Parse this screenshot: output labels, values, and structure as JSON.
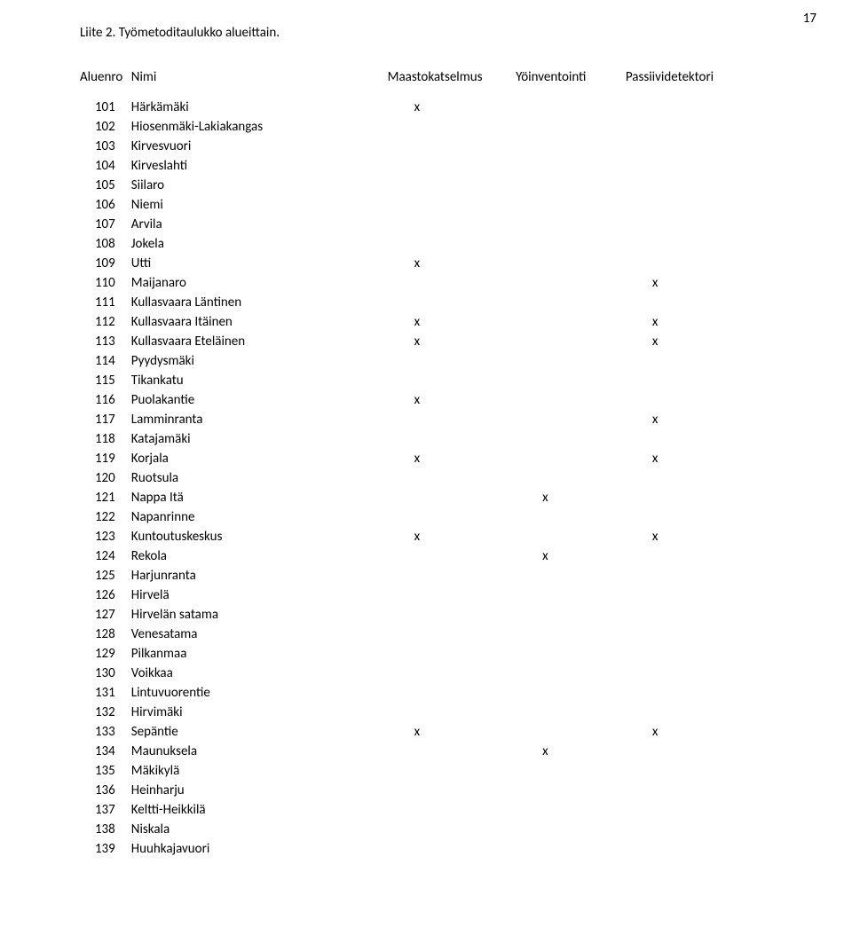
{
  "page_number": "17",
  "title": "Liite 2. Työmetoditaulukko alueittain.",
  "headers": {
    "col1": "Aluenro",
    "col2": "Nimi",
    "col3": "Maastokatselmus",
    "col4": "Yöinventointi",
    "col5": "Passiividetektori"
  },
  "mark": "x",
  "rows": [
    {
      "n": "101",
      "name": "Härkämäki",
      "m1": true,
      "m2": false,
      "m3": false
    },
    {
      "n": "102",
      "name": "Hiosenmäki-Lakiakangas",
      "m1": false,
      "m2": false,
      "m3": false
    },
    {
      "n": "103",
      "name": "Kirvesvuori",
      "m1": false,
      "m2": false,
      "m3": false
    },
    {
      "n": "104",
      "name": "Kirveslahti",
      "m1": false,
      "m2": false,
      "m3": false
    },
    {
      "n": "105",
      "name": "Siilaro",
      "m1": false,
      "m2": false,
      "m3": false
    },
    {
      "n": "106",
      "name": "Niemi",
      "m1": false,
      "m2": false,
      "m3": false
    },
    {
      "n": "107",
      "name": "Arvila",
      "m1": false,
      "m2": false,
      "m3": false
    },
    {
      "n": "108",
      "name": "Jokela",
      "m1": false,
      "m2": false,
      "m3": false
    },
    {
      "n": "109",
      "name": "Utti",
      "m1": true,
      "m2": false,
      "m3": false
    },
    {
      "n": "110",
      "name": "Maijanaro",
      "m1": false,
      "m2": false,
      "m3": true
    },
    {
      "n": "111",
      "name": "Kullasvaara Läntinen",
      "m1": false,
      "m2": false,
      "m3": false
    },
    {
      "n": "112",
      "name": "Kullasvaara Itäinen",
      "m1": true,
      "m2": false,
      "m3": true
    },
    {
      "n": "113",
      "name": "Kullasvaara Eteläinen",
      "m1": true,
      "m2": false,
      "m3": true
    },
    {
      "n": "114",
      "name": "Pyydysmäki",
      "m1": false,
      "m2": false,
      "m3": false
    },
    {
      "n": "115",
      "name": "Tikankatu",
      "m1": false,
      "m2": false,
      "m3": false
    },
    {
      "n": "116",
      "name": "Puolakantie",
      "m1": true,
      "m2": false,
      "m3": false
    },
    {
      "n": "117",
      "name": "Lamminranta",
      "m1": false,
      "m2": false,
      "m3": true
    },
    {
      "n": "118",
      "name": "Katajamäki",
      "m1": false,
      "m2": false,
      "m3": false
    },
    {
      "n": "119",
      "name": "Korjala",
      "m1": true,
      "m2": false,
      "m3": true
    },
    {
      "n": "120",
      "name": "Ruotsula",
      "m1": false,
      "m2": false,
      "m3": false
    },
    {
      "n": "121",
      "name": "Nappa Itä",
      "m1": false,
      "m2": true,
      "m3": false
    },
    {
      "n": "122",
      "name": "Napanrinne",
      "m1": false,
      "m2": false,
      "m3": false
    },
    {
      "n": "123",
      "name": "Kuntoutuskeskus",
      "m1": true,
      "m2": false,
      "m3": true
    },
    {
      "n": "124",
      "name": "Rekola",
      "m1": false,
      "m2": true,
      "m3": false
    },
    {
      "n": "125",
      "name": "Harjunranta",
      "m1": false,
      "m2": false,
      "m3": false
    },
    {
      "n": "126",
      "name": "Hirvelä",
      "m1": false,
      "m2": false,
      "m3": false
    },
    {
      "n": "127",
      "name": "Hirvelän satama",
      "m1": false,
      "m2": false,
      "m3": false
    },
    {
      "n": "128",
      "name": "Venesatama",
      "m1": false,
      "m2": false,
      "m3": false
    },
    {
      "n": "129",
      "name": "Pilkanmaa",
      "m1": false,
      "m2": false,
      "m3": false
    },
    {
      "n": "130",
      "name": "Voikkaa",
      "m1": false,
      "m2": false,
      "m3": false
    },
    {
      "n": "131",
      "name": "Lintuvuorentie",
      "m1": false,
      "m2": false,
      "m3": false
    },
    {
      "n": "132",
      "name": "Hirvimäki",
      "m1": false,
      "m2": false,
      "m3": false
    },
    {
      "n": "133",
      "name": "Sepäntie",
      "m1": true,
      "m2": false,
      "m3": true
    },
    {
      "n": "134",
      "name": "Maunuksela",
      "m1": false,
      "m2": true,
      "m3": false
    },
    {
      "n": "135",
      "name": "Mäkikylä",
      "m1": false,
      "m2": false,
      "m3": false
    },
    {
      "n": "136",
      "name": "Heinharju",
      "m1": false,
      "m2": false,
      "m3": false
    },
    {
      "n": "137",
      "name": "Keltti-Heikkilä",
      "m1": false,
      "m2": false,
      "m3": false
    },
    {
      "n": "138",
      "name": "Niskala",
      "m1": false,
      "m2": false,
      "m3": false
    },
    {
      "n": "139",
      "name": "Huuhkajavuori",
      "m1": false,
      "m2": false,
      "m3": false
    }
  ]
}
